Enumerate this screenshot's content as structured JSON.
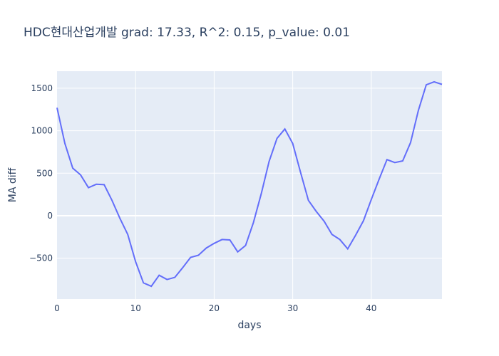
{
  "chart_data": {
    "type": "line",
    "title": "HDC현대산업개발 grad: 17.33, R^2: 0.15, p_value: 0.01",
    "xlabel": "days",
    "ylabel": "MA diff",
    "xlim": [
      0,
      49
    ],
    "ylim": [
      -980,
      1700
    ],
    "xticks": [
      0,
      10,
      20,
      30,
      40
    ],
    "yticks": [
      -500,
      0,
      500,
      1000,
      1500
    ],
    "ytick_labels": [
      "−500",
      "0",
      "500",
      "1000",
      "1500"
    ],
    "grid": true,
    "series_color": "#636efa",
    "plot_bg": "#e5ecf6",
    "x": [
      0,
      1,
      2,
      3,
      4,
      5,
      6,
      7,
      8,
      9,
      10,
      11,
      12,
      13,
      14,
      15,
      16,
      17,
      18,
      19,
      20,
      21,
      22,
      23,
      24,
      25,
      26,
      27,
      28,
      29,
      30,
      31,
      32,
      33,
      34,
      35,
      36,
      37,
      38,
      39,
      40,
      41,
      42,
      43,
      44,
      45,
      46,
      47,
      48,
      49
    ],
    "values": [
      1270,
      850,
      560,
      480,
      330,
      370,
      365,
      180,
      -30,
      -220,
      -540,
      -790,
      -830,
      -700,
      -750,
      -725,
      -610,
      -490,
      -465,
      -380,
      -325,
      -280,
      -285,
      -425,
      -350,
      -80,
      260,
      640,
      910,
      1020,
      850,
      510,
      180,
      50,
      -65,
      -220,
      -280,
      -390,
      -230,
      -60,
      190,
      430,
      660,
      625,
      645,
      860,
      1240,
      1540,
      1575,
      1545
    ]
  }
}
